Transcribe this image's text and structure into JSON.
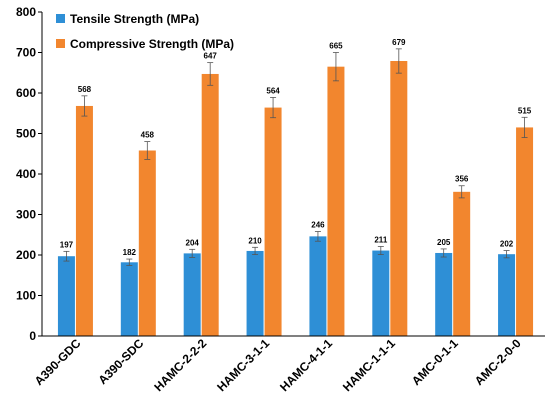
{
  "chart_data": {
    "type": "bar",
    "categories": [
      "A390-GDC",
      "A390-SDC",
      "HAMC-2-2-2",
      "HAMC-3-1-1",
      "HAMC-4-1-1",
      "HAMC-1-1-1",
      "AMC-0-1-1",
      "AMC-2-0-0"
    ],
    "series": [
      {
        "name": "Tensile Strength (MPa)",
        "color": "#2e8fd6",
        "values": [
          197,
          182,
          204,
          210,
          246,
          211,
          205,
          202
        ],
        "errors": [
          12,
          8,
          10,
          9,
          12,
          10,
          10,
          9
        ]
      },
      {
        "name": "Compressive Strength (MPa)",
        "color": "#f2862e",
        "values": [
          568,
          458,
          647,
          564,
          665,
          679,
          356,
          515
        ],
        "errors": [
          25,
          22,
          28,
          25,
          35,
          30,
          15,
          25
        ]
      }
    ],
    "yticks": [
      0,
      100,
      200,
      300,
      400,
      500,
      600,
      700,
      800
    ],
    "ylim": [
      0,
      800
    ],
    "grid": false,
    "legend": "top-left"
  }
}
